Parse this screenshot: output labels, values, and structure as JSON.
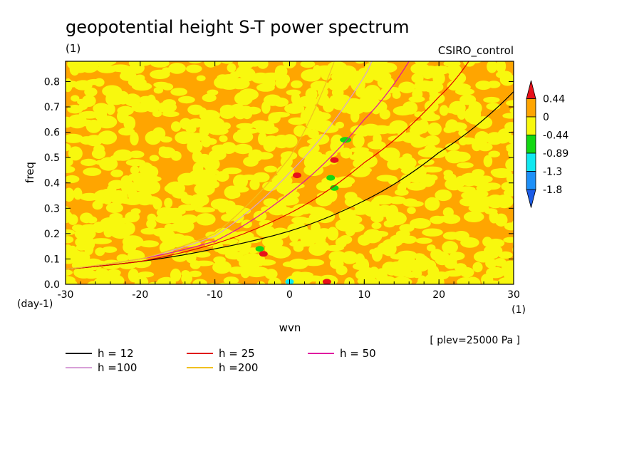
{
  "chart_data": {
    "type": "heatmap",
    "title": "geopotential height S-T power spectrum",
    "subtitle_left": "(1)",
    "subtitle_right": "CSIRO_control",
    "xlabel": "wvn",
    "ylabel": "freq",
    "x_unit": "(1)",
    "y_unit": "(day-1)",
    "xlim": [
      -30,
      30
    ],
    "ylim": [
      0,
      0.88
    ],
    "x_ticks": [
      -30,
      -20,
      -10,
      0,
      10,
      20,
      30
    ],
    "x_tick_labels": [
      "-30",
      "-20",
      "-10",
      "0",
      "10",
      "20",
      "30"
    ],
    "y_ticks": [
      0,
      0.1,
      0.2,
      0.3,
      0.4,
      0.5,
      0.6,
      0.7,
      0.8
    ],
    "y_tick_labels": [
      "0.0",
      "0.1",
      "0.2",
      "0.3",
      "0.4",
      "0.5",
      "0.6",
      "0.7",
      "0.8"
    ],
    "colorbar": {
      "levels": [
        "0.44",
        "0",
        "-0.44",
        "-0.89",
        "-1.3",
        "-1.8"
      ],
      "colors": [
        "#e8101a",
        "#ffa500",
        "#f8f80e",
        "#12d812",
        "#10e8f0",
        "#1e90f8",
        "#1c5ce8"
      ]
    },
    "field_colors": {
      "orange": "#ffa500",
      "yellow": "#f8f80e",
      "green": "#12d812",
      "red": "#e8101a",
      "cyan": "#10e8f0"
    },
    "anomalies": [
      {
        "x": 1.0,
        "y": 0.43,
        "level": "red"
      },
      {
        "x": 6.0,
        "y": 0.49,
        "level": "red"
      },
      {
        "x": 5.0,
        "y": 0.01,
        "level": "red"
      },
      {
        "x": -3.5,
        "y": 0.12,
        "level": "red"
      },
      {
        "x": 7.5,
        "y": 0.57,
        "level": "green"
      },
      {
        "x": 5.5,
        "y": 0.42,
        "level": "green"
      },
      {
        "x": -4.0,
        "y": 0.14,
        "level": "green"
      },
      {
        "x": 6.0,
        "y": 0.38,
        "level": "green"
      },
      {
        "x": 0.0,
        "y": 0.01,
        "level": "cyan"
      }
    ],
    "series": [
      {
        "name": "h = 12",
        "h": 12,
        "color": "#000000",
        "samples": [
          [
            -30,
            0.06
          ],
          [
            -20,
            0.09
          ],
          [
            -10,
            0.14
          ],
          [
            0,
            0.21
          ],
          [
            10,
            0.33
          ],
          [
            20,
            0.52
          ],
          [
            30,
            0.76
          ]
        ]
      },
      {
        "name": "h = 25",
        "h": 25,
        "color": "#e00000",
        "samples": [
          [
            -30,
            0.06
          ],
          [
            -20,
            0.09
          ],
          [
            -10,
            0.16
          ],
          [
            0,
            0.28
          ],
          [
            10,
            0.48
          ],
          [
            20,
            0.74
          ],
          [
            24,
            0.88
          ]
        ]
      },
      {
        "name": "h = 50",
        "h": 50,
        "color": "#e010a0",
        "samples": [
          [
            -30,
            0.06
          ],
          [
            -20,
            0.1
          ],
          [
            -10,
            0.17
          ],
          [
            0,
            0.36
          ],
          [
            10,
            0.65
          ],
          [
            16,
            0.88
          ]
        ]
      },
      {
        "name": "h =100",
        "h": 100,
        "color": "#d8a0d8",
        "samples": [
          [
            -30,
            0.06
          ],
          [
            -20,
            0.1
          ],
          [
            -10,
            0.19
          ],
          [
            0,
            0.44
          ],
          [
            10,
            0.82
          ],
          [
            11,
            0.88
          ]
        ]
      },
      {
        "name": "h =200",
        "h": 200,
        "color": "#f0c020",
        "samples": [
          [
            -30,
            0.06
          ],
          [
            -20,
            0.1
          ],
          [
            -10,
            0.2
          ],
          [
            0,
            0.5
          ],
          [
            6,
            0.88
          ]
        ]
      }
    ],
    "level_note": "[ plev=25000 Pa ]"
  }
}
